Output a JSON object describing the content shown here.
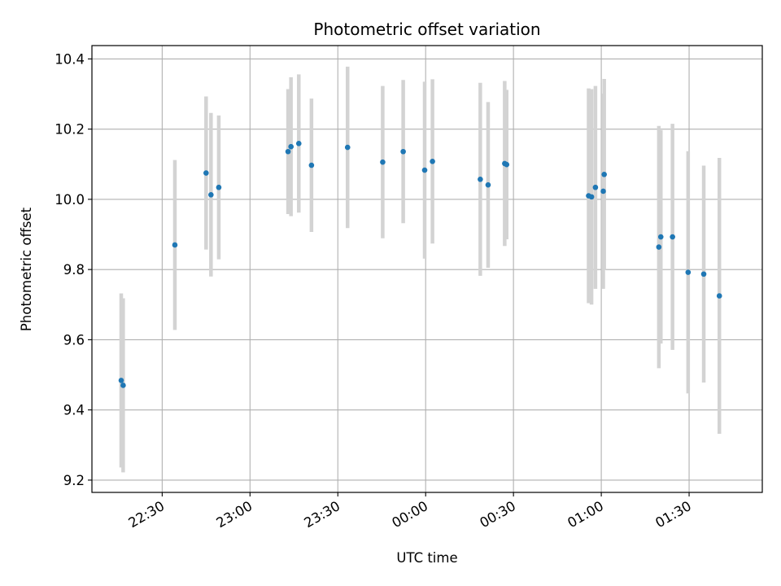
{
  "chart_data": {
    "type": "scatter",
    "title": "Photometric offset variation",
    "xlabel": "UTC time",
    "ylabel": "Photometric offset",
    "x_axis": "time",
    "x_tick_labels": [
      "22:30",
      "23:00",
      "23:30",
      "00:00",
      "00:30",
      "01:00",
      "01:30"
    ],
    "x_tick_times": [
      "22:30",
      "23:00",
      "23:30",
      "24:00",
      "24:30",
      "25:00",
      "25:30"
    ],
    "x_range": [
      "22:06",
      "25:55"
    ],
    "y_ticks": [
      9.2,
      9.4,
      9.6,
      9.8,
      10.0,
      10.2,
      10.4
    ],
    "y_tick_labels": [
      "9.2",
      "9.4",
      "9.6",
      "9.8",
      "10.0",
      "10.2",
      "10.4"
    ],
    "ylim": [
      9.165,
      10.438
    ],
    "grid": true,
    "colors": {
      "points": "#1f77b4",
      "errorbars": "#d3d3d3",
      "grid": "#b0b0b0"
    },
    "series": [
      {
        "points": [
          {
            "t": "22:16:00",
            "y": 9.484,
            "yerr": 0.248
          },
          {
            "t": "22:16:40",
            "y": 9.47,
            "yerr": 0.248
          },
          {
            "t": "22:34:20",
            "y": 9.87,
            "yerr": 0.242
          },
          {
            "t": "22:45:00",
            "y": 10.075,
            "yerr": 0.218
          },
          {
            "t": "22:46:40",
            "y": 10.013,
            "yerr": 0.233
          },
          {
            "t": "22:49:20",
            "y": 10.034,
            "yerr": 0.205
          },
          {
            "t": "23:13:00",
            "y": 10.136,
            "yerr": 0.178
          },
          {
            "t": "23:14:00",
            "y": 10.15,
            "yerr": 0.198
          },
          {
            "t": "23:16:40",
            "y": 10.159,
            "yerr": 0.197
          },
          {
            "t": "23:21:00",
            "y": 10.097,
            "yerr": 0.19
          },
          {
            "t": "23:33:20",
            "y": 10.148,
            "yerr": 0.23
          },
          {
            "t": "23:45:20",
            "y": 10.106,
            "yerr": 0.217
          },
          {
            "t": "23:52:20",
            "y": 10.136,
            "yerr": 0.204
          },
          {
            "t": "23:59:40",
            "y": 10.083,
            "yerr": 0.252
          },
          {
            "t": "24:02:20",
            "y": 10.108,
            "yerr": 0.234
          },
          {
            "t": "24:18:40",
            "y": 10.057,
            "yerr": 0.275
          },
          {
            "t": "24:21:20",
            "y": 10.041,
            "yerr": 0.236
          },
          {
            "t": "24:27:00",
            "y": 10.102,
            "yerr": 0.235
          },
          {
            "t": "24:27:40",
            "y": 10.099,
            "yerr": 0.213
          },
          {
            "t": "24:55:40",
            "y": 10.01,
            "yerr": 0.306
          },
          {
            "t": "24:56:40",
            "y": 10.007,
            "yerr": 0.307
          },
          {
            "t": "24:58:00",
            "y": 10.034,
            "yerr": 0.289
          },
          {
            "t": "25:00:40",
            "y": 10.023,
            "yerr": 0.278
          },
          {
            "t": "25:01:00",
            "y": 10.071,
            "yerr": 0.272
          },
          {
            "t": "25:19:40",
            "y": 9.864,
            "yerr": 0.345
          },
          {
            "t": "25:20:20",
            "y": 9.893,
            "yerr": 0.304
          },
          {
            "t": "25:24:20",
            "y": 9.893,
            "yerr": 0.322
          },
          {
            "t": "25:29:40",
            "y": 9.792,
            "yerr": 0.345
          },
          {
            "t": "25:35:00",
            "y": 9.787,
            "yerr": 0.309
          },
          {
            "t": "25:40:20",
            "y": 9.725,
            "yerr": 0.393
          }
        ]
      }
    ]
  }
}
